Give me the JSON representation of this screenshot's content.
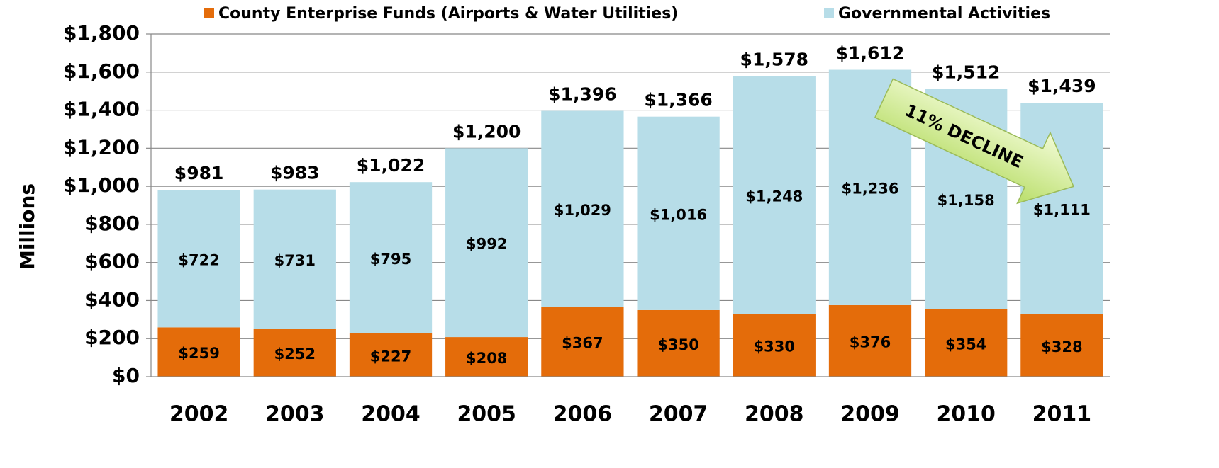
{
  "chart_data": {
    "type": "stacked_bar",
    "y_label": "Millions",
    "annotation": "11% DECLINE",
    "categories": [
      "2002",
      "2003",
      "2004",
      "2005",
      "2006",
      "2007",
      "2008",
      "2009",
      "2010",
      "2011"
    ],
    "series": [
      {
        "name": "County Enterprise Funds (Airports & Water Utilities)",
        "color": "#e46c0a",
        "values": [
          259,
          252,
          227,
          208,
          367,
          350,
          330,
          376,
          354,
          328
        ],
        "value_labels": [
          "$259",
          "$252",
          "$227",
          "$208",
          "$367",
          "$350",
          "$330",
          "$376",
          "$354",
          "$328"
        ]
      },
      {
        "name": "Governmental Activities",
        "color": "#b7dde8",
        "values": [
          722,
          731,
          795,
          992,
          1029,
          1016,
          1248,
          1236,
          1158,
          1111
        ],
        "value_labels": [
          "$722",
          "$731",
          "$795",
          "$992",
          "$1,029",
          "$1,016",
          "$1,248",
          "$1,236",
          "$1,158",
          "$1,111"
        ]
      }
    ],
    "total_labels": [
      "$981",
      "$983",
      "$1,022",
      "$1,200",
      "$1,396",
      "$1,366",
      "$1,578",
      "$1,612",
      "$1,512",
      "$1,439"
    ],
    "ylim": [
      0,
      1800
    ],
    "yticks": [
      {
        "value": 0,
        "label": "$0"
      },
      {
        "value": 200,
        "label": "$200"
      },
      {
        "value": 400,
        "label": "$400"
      },
      {
        "value": 600,
        "label": "$600"
      },
      {
        "value": 800,
        "label": "$800"
      },
      {
        "value": 1000,
        "label": "$1,000"
      },
      {
        "value": 1200,
        "label": "$1,200"
      },
      {
        "value": 1400,
        "label": "$1,400"
      },
      {
        "value": 1600,
        "label": "$1,600"
      },
      {
        "value": 1800,
        "label": "$1,800"
      }
    ],
    "grid": true,
    "legend": "top"
  }
}
